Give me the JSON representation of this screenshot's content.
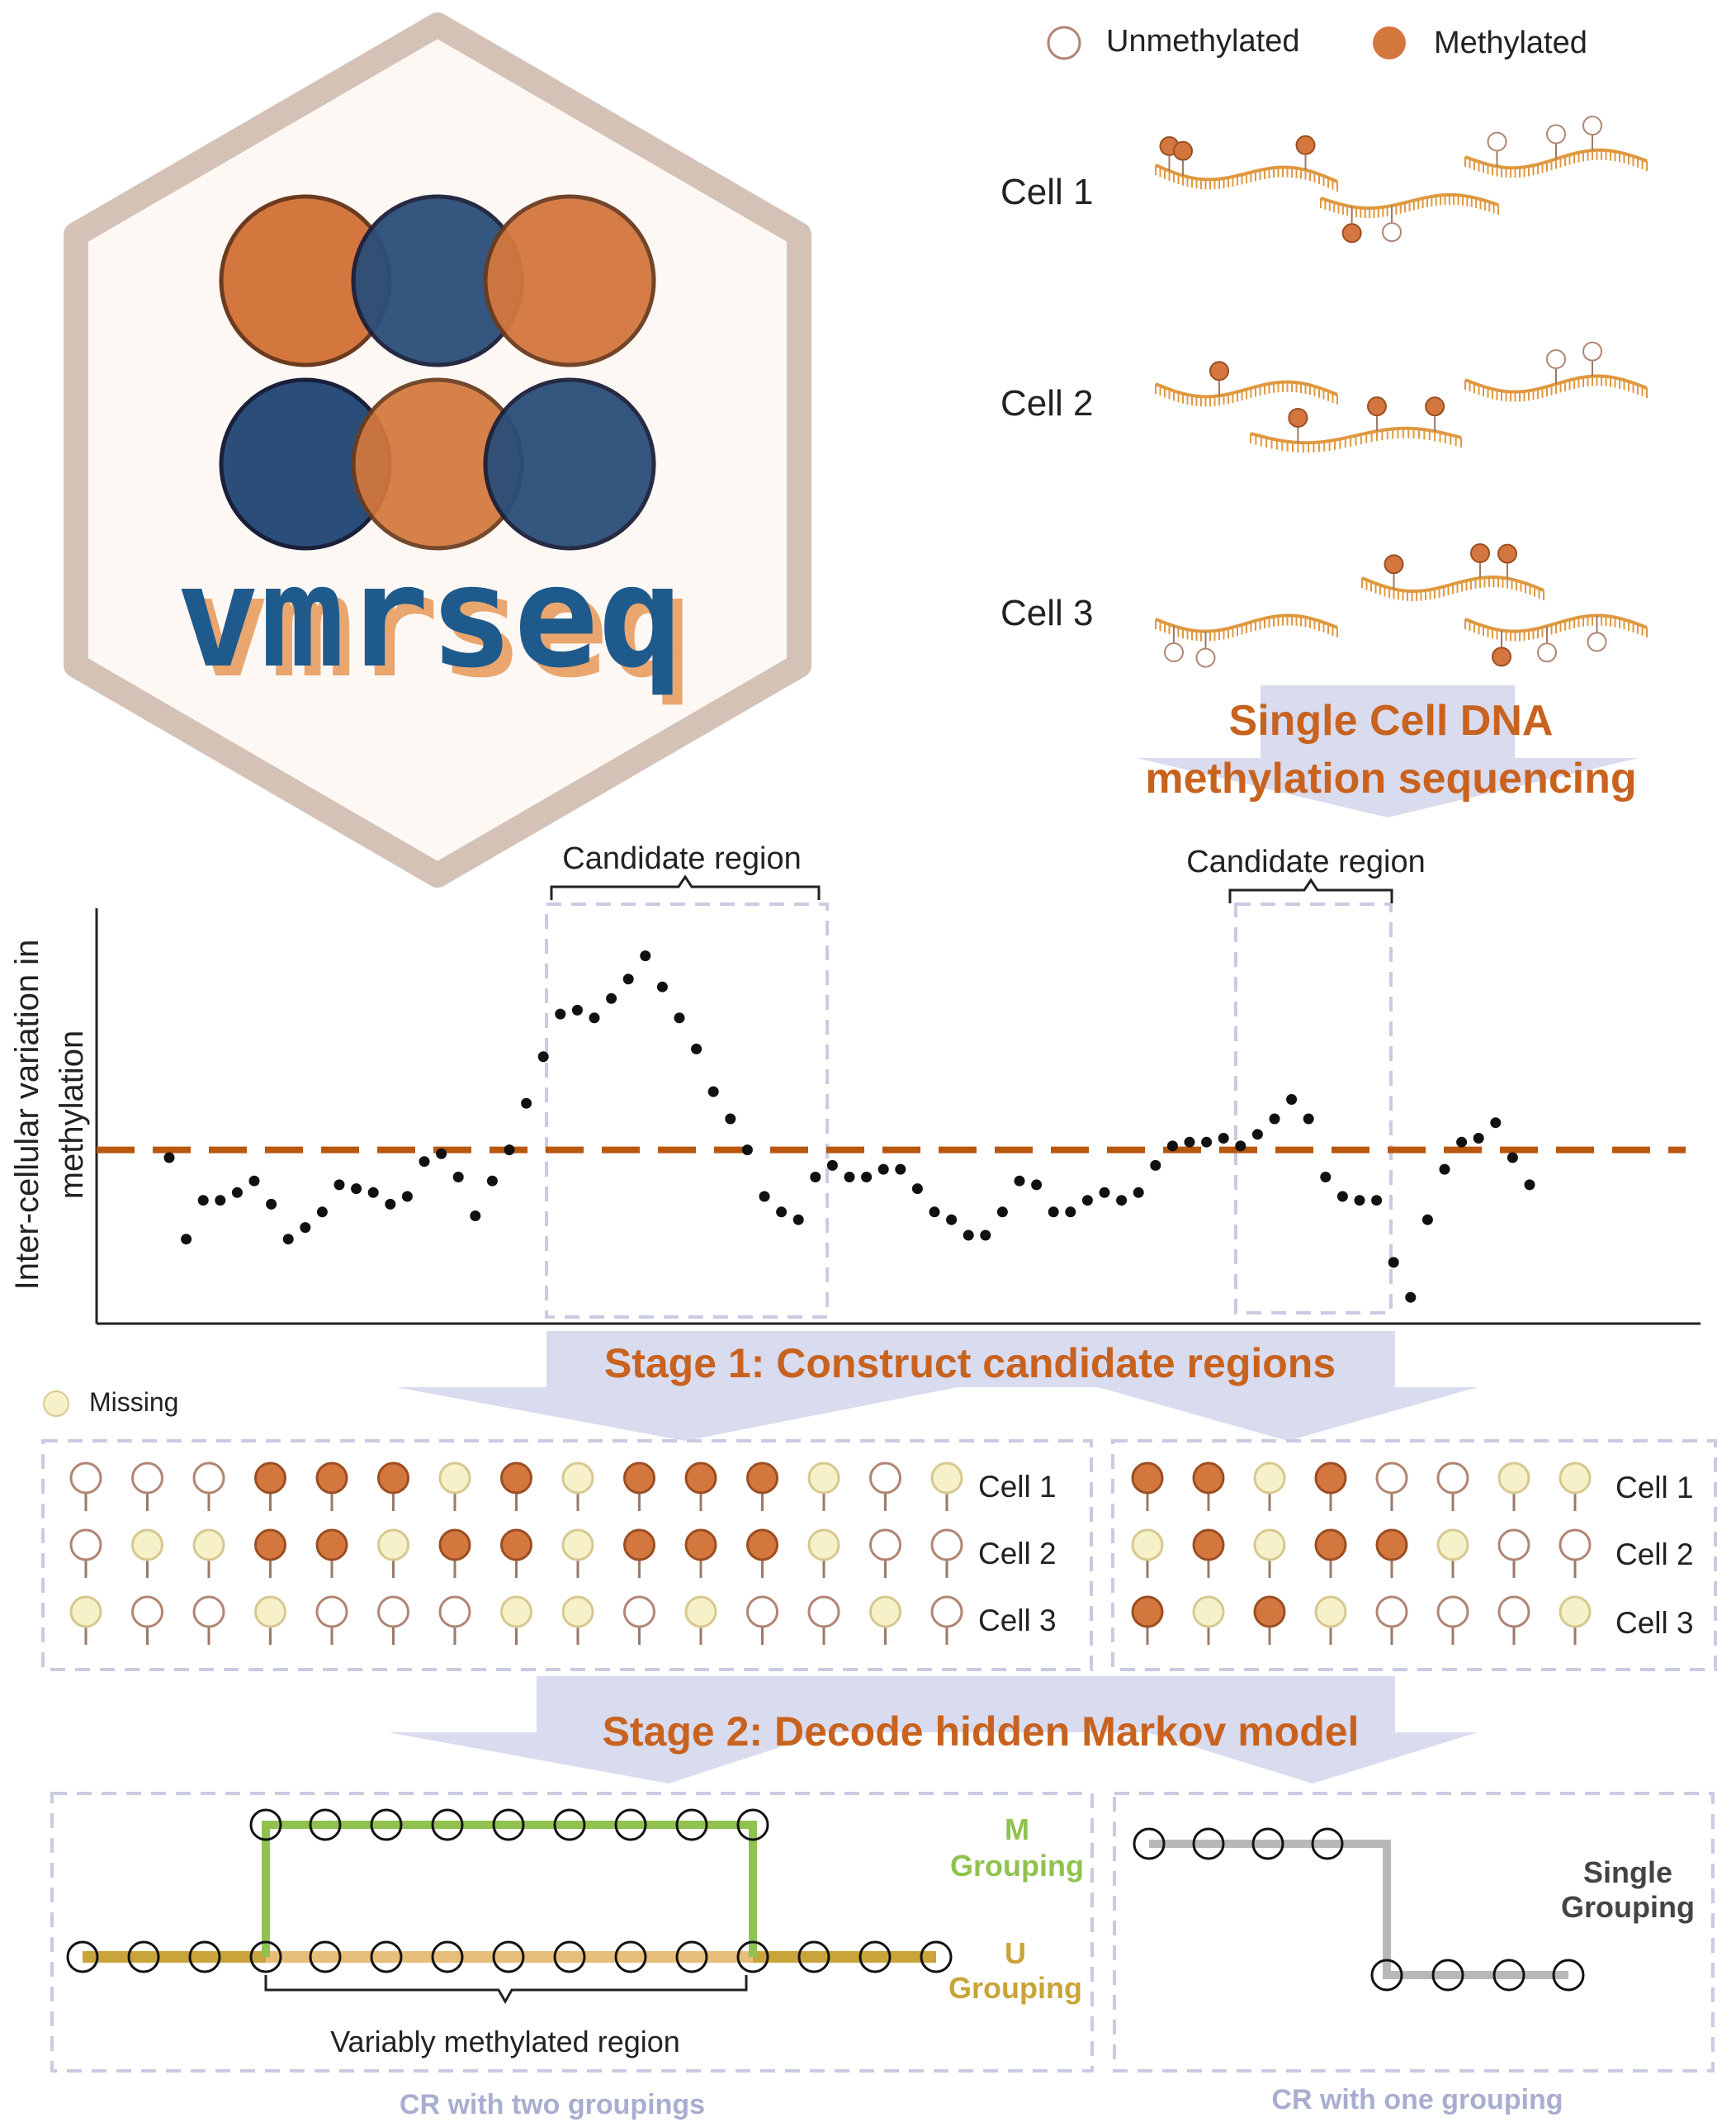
{
  "logo": {
    "text": "vmrseq"
  },
  "legend": {
    "unmethylated": "Unmethylated",
    "methylated": "Methylated",
    "missing": "Missing"
  },
  "cells": {
    "cell1": "Cell 1",
    "cell2": "Cell 2",
    "cell3": "Cell 3"
  },
  "headings": {
    "sequencing_line1": "Single Cell DNA",
    "sequencing_line2": "methylation sequencing",
    "stage1": "Stage 1: Construct candidate regions",
    "stage2": "Stage 2: Decode hidden Markov model"
  },
  "plot": {
    "ylabel_line1": "Inter-cellular variation in",
    "ylabel_line2": "methylation",
    "candidate_label_1": "Candidate region",
    "candidate_label_2": "Candidate region",
    "points": [
      [
        1,
        40
      ],
      [
        2,
        19
      ],
      [
        3,
        29
      ],
      [
        4,
        29
      ],
      [
        5,
        31
      ],
      [
        6,
        34
      ],
      [
        7,
        28
      ],
      [
        8,
        19
      ],
      [
        9,
        22
      ],
      [
        10,
        26
      ],
      [
        11,
        33
      ],
      [
        12,
        32
      ],
      [
        13,
        31
      ],
      [
        14,
        28
      ],
      [
        15,
        30
      ],
      [
        16,
        39
      ],
      [
        17,
        41
      ],
      [
        18,
        35
      ],
      [
        19,
        25
      ],
      [
        20,
        34
      ],
      [
        21,
        42
      ],
      [
        22,
        54
      ],
      [
        23,
        66
      ],
      [
        24,
        77
      ],
      [
        25,
        78
      ],
      [
        26,
        76
      ],
      [
        27,
        81
      ],
      [
        28,
        86
      ],
      [
        29,
        92
      ],
      [
        30,
        84
      ],
      [
        31,
        76
      ],
      [
        32,
        68
      ],
      [
        33,
        57
      ],
      [
        34,
        50
      ],
      [
        35,
        42
      ],
      [
        36,
        30
      ],
      [
        37,
        26
      ],
      [
        38,
        24
      ],
      [
        39,
        35
      ],
      [
        40,
        38
      ],
      [
        41,
        35
      ],
      [
        42,
        35
      ],
      [
        43,
        37
      ],
      [
        44,
        37
      ],
      [
        45,
        32
      ],
      [
        46,
        26
      ],
      [
        47,
        24
      ],
      [
        48,
        20
      ],
      [
        49,
        20
      ],
      [
        50,
        26
      ],
      [
        51,
        34
      ],
      [
        52,
        33
      ],
      [
        53,
        26
      ],
      [
        54,
        26
      ],
      [
        55,
        29
      ],
      [
        56,
        31
      ],
      [
        57,
        29
      ],
      [
        58,
        31
      ],
      [
        59,
        38
      ],
      [
        60,
        43
      ],
      [
        61,
        44
      ],
      [
        62,
        44
      ],
      [
        63,
        45
      ],
      [
        64,
        43
      ],
      [
        65,
        46
      ],
      [
        66,
        50
      ],
      [
        67,
        55
      ],
      [
        68,
        50
      ],
      [
        69,
        35
      ],
      [
        70,
        30
      ],
      [
        71,
        29
      ],
      [
        72,
        29
      ],
      [
        73,
        13
      ],
      [
        74,
        4
      ],
      [
        75,
        24
      ],
      [
        76,
        37
      ],
      [
        77,
        44
      ],
      [
        78,
        45
      ],
      [
        79,
        49
      ],
      [
        80,
        40
      ],
      [
        81,
        33
      ]
    ],
    "threshold": 42,
    "ylim": [
      0,
      100
    ]
  },
  "stage1_box1": {
    "rows": [
      [
        "U",
        "U",
        "U",
        "M",
        "M",
        "M",
        "X",
        "M",
        "X",
        "M",
        "M",
        "M",
        "X",
        "U",
        "X"
      ],
      [
        "U",
        "X",
        "X",
        "M",
        "M",
        "X",
        "M",
        "M",
        "X",
        "M",
        "M",
        "M",
        "X",
        "U",
        "U"
      ],
      [
        "X",
        "U",
        "U",
        "X",
        "U",
        "U",
        "U",
        "X",
        "X",
        "U",
        "X",
        "U",
        "U",
        "X",
        "U"
      ]
    ]
  },
  "stage1_box2": {
    "rows": [
      [
        "M",
        "M",
        "X",
        "M",
        "U",
        "U",
        "X",
        "X"
      ],
      [
        "X",
        "M",
        "X",
        "M",
        "M",
        "X",
        "U",
        "U"
      ],
      [
        "M",
        "X",
        "M",
        "X",
        "U",
        "U",
        "U",
        "X"
      ]
    ]
  },
  "stage2": {
    "m_grouping_line1": "M",
    "m_grouping_line2": "Grouping",
    "u_grouping_line1": "U",
    "u_grouping_line2": "Grouping",
    "vmr_label": "Variably methylated region",
    "single_line1": "Single",
    "single_line2": "Grouping",
    "footer_left": "CR with two groupings",
    "footer_right": "CR with one grouping"
  },
  "colors": {
    "orange": "#d4773e",
    "navy": "#2a4e79",
    "headline": "#c8621f",
    "missing": "#f6f1c9",
    "m_green": "#8fc24f",
    "u_olive": "#c9a43a",
    "u_light": "#e7bd7a",
    "gray_line": "#b8b8b8",
    "dash_box": "#c9cbe3",
    "arrow": "#d9dbef",
    "threshold": "#b9570f"
  }
}
